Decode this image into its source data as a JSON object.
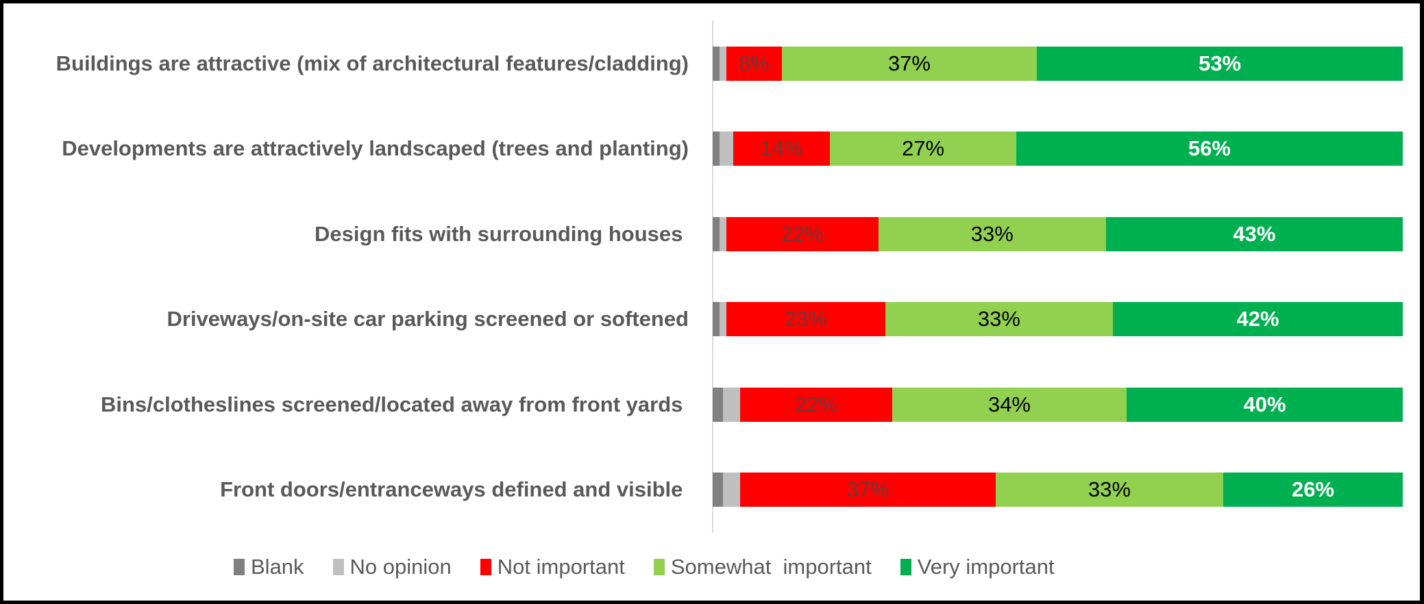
{
  "chart_data": {
    "type": "bar",
    "orientation": "horizontal",
    "stacked": true,
    "title": "",
    "xlabel": "",
    "ylabel": "",
    "xlim": [
      0,
      100
    ],
    "grid": false,
    "legend_position": "bottom",
    "categories": [
      "Buildings are attractive (mix of architectural features/cladding)",
      "Developments are attractively landscaped (trees and planting)",
      "Design fits with surrounding houses ",
      "Driveways/on-site car parking screened or softened",
      "Bins/clotheslines screened/located away from front yards ",
      "Front doors/entranceways defined and visible "
    ],
    "series": [
      {
        "name": "Blank",
        "color": "#808080",
        "values": [
          1,
          1,
          1,
          1,
          1.5,
          1.5
        ]
      },
      {
        "name": "No opinion",
        "color": "#BFBFBF",
        "values": [
          1,
          2,
          1,
          1,
          2.5,
          2.5
        ]
      },
      {
        "name": "Not important",
        "color": "#FF0000",
        "values": [
          8,
          14,
          22,
          23,
          22,
          37
        ]
      },
      {
        "name": "Somewhat  important",
        "color": "#92D050",
        "values": [
          37,
          27,
          33,
          33,
          34,
          33
        ]
      },
      {
        "name": "Very important",
        "color": "#00B050",
        "values": [
          53,
          56,
          43,
          42,
          40,
          26
        ]
      }
    ]
  },
  "rows": [
    {
      "label": "Buildings are attractive (mix of architectural features/cladding)",
      "blank": 1,
      "noop": 1,
      "not": 8,
      "not_label": "8%",
      "some": 37,
      "some_label": "37%",
      "very": 53,
      "very_label": "53%"
    },
    {
      "label": "Developments are attractively landscaped (trees and planting)",
      "blank": 1,
      "noop": 2,
      "not": 14,
      "not_label": "14%",
      "some": 27,
      "some_label": "27%",
      "very": 56,
      "very_label": "56%"
    },
    {
      "label": "Design fits with surrounding houses ",
      "blank": 1,
      "noop": 1,
      "not": 22,
      "not_label": "22%",
      "some": 33,
      "some_label": "33%",
      "very": 43,
      "very_label": "43%"
    },
    {
      "label": "Driveways/on-site car parking screened or softened",
      "blank": 1,
      "noop": 1,
      "not": 23,
      "not_label": "23%",
      "some": 33,
      "some_label": "33%",
      "very": 42,
      "very_label": "42%"
    },
    {
      "label": "Bins/clotheslines screened/located away from front yards ",
      "blank": 1.5,
      "noop": 2.5,
      "not": 22,
      "not_label": "22%",
      "some": 34,
      "some_label": "34%",
      "very": 40,
      "very_label": "40%"
    },
    {
      "label": "Front doors/entranceways defined and visible ",
      "blank": 1.5,
      "noop": 2.5,
      "not": 37,
      "not_label": "37%",
      "some": 33,
      "some_label": "33%",
      "very": 26,
      "very_label": "26%"
    }
  ],
  "legend": [
    {
      "label": "Blank",
      "color": "#808080"
    },
    {
      "label": "No opinion",
      "color": "#BFBFBF"
    },
    {
      "label": "Not important",
      "color": "#FF0000"
    },
    {
      "label": "Somewhat  important",
      "color": "#92D050"
    },
    {
      "label": "Very important",
      "color": "#00B050"
    }
  ]
}
